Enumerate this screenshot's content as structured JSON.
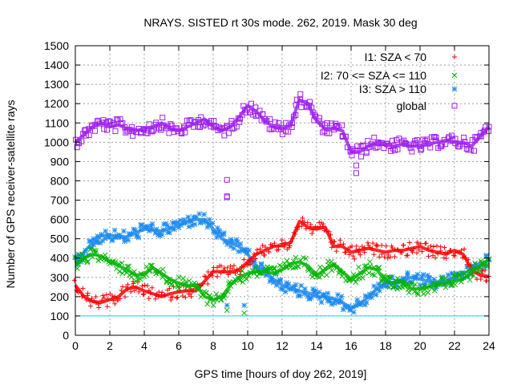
{
  "chart_data": {
    "type": "scatter",
    "title": "NRAYS. SISTED rt 30s mode. 262, 2019. Mask 30 deg",
    "xlabel": "GPS time [hours of doy 262, 2019]",
    "ylabel": "Number of GPS receiver-satellite rays",
    "xlim": [
      0,
      24
    ],
    "ylim": [
      0,
      1500
    ],
    "xticks": [
      "0",
      "2",
      "4",
      "6",
      "8",
      "10",
      "12",
      "14",
      "16",
      "18",
      "20",
      "22",
      "24"
    ],
    "yticks": [
      "0",
      "100",
      "200",
      "300",
      "400",
      "500",
      "600",
      "700",
      "800",
      "900",
      "1000",
      "1100",
      "1200",
      "1300",
      "1400",
      "1500"
    ],
    "grid": true,
    "legend_position": "top-right",
    "reference_line": {
      "y": 100,
      "color": "#22d3e6"
    },
    "series": [
      {
        "name": "I1: SZA < 70",
        "marker": "+",
        "color": "#ff0000",
        "x": [
          0.0,
          0.5,
          1.0,
          1.5,
          2.0,
          2.5,
          3.0,
          3.5,
          4.0,
          4.5,
          5.0,
          5.5,
          6.0,
          6.5,
          7.0,
          7.5,
          8.0,
          8.5,
          9.0,
          9.5,
          10.0,
          10.5,
          11.0,
          11.5,
          12.0,
          12.5,
          13.0,
          13.5,
          14.0,
          14.5,
          15.0,
          15.5,
          16.0,
          16.5,
          17.0,
          17.5,
          18.0,
          18.5,
          19.0,
          19.5,
          20.0,
          20.5,
          21.0,
          21.5,
          22.0,
          22.5,
          23.0,
          23.5,
          24.0
        ],
        "y": [
          260,
          200,
          175,
          170,
          185,
          200,
          240,
          250,
          230,
          215,
          200,
          215,
          225,
          230,
          230,
          280,
          330,
          330,
          325,
          340,
          380,
          420,
          440,
          460,
          465,
          480,
          590,
          560,
          550,
          560,
          460,
          460,
          430,
          440,
          450,
          440,
          430,
          440,
          440,
          450,
          460,
          440,
          430,
          420,
          440,
          420,
          340,
          310,
          305
        ],
        "outliers": [
          {
            "x": 16.2,
            "y": 395
          }
        ]
      },
      {
        "name": "I2: 70 <= SZA <= 110",
        "marker": "x",
        "color": "#00b400",
        "x": [
          0.0,
          0.5,
          1.0,
          1.5,
          2.0,
          2.5,
          3.0,
          3.5,
          4.0,
          4.5,
          5.0,
          5.5,
          6.0,
          6.5,
          7.0,
          7.5,
          8.0,
          8.5,
          9.0,
          9.5,
          10.0,
          10.5,
          11.0,
          11.5,
          12.0,
          12.5,
          13.0,
          13.5,
          14.0,
          14.5,
          15.0,
          15.5,
          16.0,
          16.5,
          17.0,
          17.5,
          18.0,
          18.5,
          19.0,
          19.5,
          20.0,
          20.5,
          21.0,
          21.5,
          22.0,
          22.5,
          23.0,
          23.5,
          24.0
        ],
        "y": [
          370,
          400,
          420,
          410,
          380,
          360,
          340,
          310,
          320,
          350,
          320,
          290,
          270,
          255,
          260,
          200,
          185,
          200,
          260,
          300,
          320,
          330,
          330,
          320,
          340,
          370,
          380,
          360,
          310,
          340,
          370,
          330,
          290,
          320,
          350,
          340,
          280,
          270,
          280,
          240,
          240,
          250,
          260,
          270,
          280,
          290,
          330,
          360,
          395
        ],
        "outliers": [
          {
            "x": 8.8,
            "y": 130
          },
          {
            "x": 9.8,
            "y": 115
          }
        ]
      },
      {
        "name": "I3: SZA > 110",
        "marker": "*",
        "color": "#1e8cf0",
        "x": [
          0.0,
          0.5,
          1.0,
          1.5,
          2.0,
          2.5,
          3.0,
          3.5,
          4.0,
          4.5,
          5.0,
          5.5,
          6.0,
          6.5,
          7.0,
          7.5,
          8.0,
          8.5,
          9.0,
          9.5,
          10.0,
          10.5,
          11.0,
          11.5,
          12.0,
          12.5,
          13.0,
          13.5,
          14.0,
          14.5,
          15.0,
          15.5,
          16.0,
          16.5,
          17.0,
          17.5,
          18.0,
          18.5,
          19.0,
          19.5,
          20.0,
          20.5,
          21.0,
          21.5,
          22.0,
          22.5,
          23.0,
          23.5,
          24.0
        ],
        "y": [
          380,
          430,
          480,
          515,
          520,
          510,
          510,
          530,
          550,
          545,
          540,
          555,
          570,
          590,
          600,
          600,
          550,
          500,
          480,
          460,
          420,
          360,
          330,
          290,
          260,
          240,
          230,
          220,
          200,
          200,
          190,
          170,
          140,
          160,
          200,
          240,
          270,
          270,
          290,
          300,
          290,
          280,
          270,
          280,
          300,
          320,
          340,
          360,
          390
        ],
        "outliers": [
          {
            "x": 8.8,
            "y": 155
          },
          {
            "x": 9.8,
            "y": 155
          }
        ]
      },
      {
        "name": "global",
        "marker": "square",
        "color": "#a020f0",
        "x": [
          0.0,
          0.5,
          1.0,
          1.5,
          2.0,
          2.5,
          3.0,
          3.5,
          4.0,
          4.5,
          5.0,
          5.5,
          6.0,
          6.5,
          7.0,
          7.5,
          8.0,
          8.5,
          9.0,
          9.5,
          10.0,
          10.5,
          11.0,
          11.5,
          12.0,
          12.5,
          13.0,
          13.5,
          14.0,
          14.5,
          15.0,
          15.5,
          16.0,
          16.5,
          17.0,
          17.5,
          18.0,
          18.5,
          19.0,
          19.5,
          20.0,
          20.5,
          21.0,
          21.5,
          22.0,
          22.5,
          23.0,
          23.5,
          24.0
        ],
        "y": [
          1000,
          1040,
          1080,
          1100,
          1080,
          1090,
          1070,
          1060,
          1070,
          1080,
          1100,
          1070,
          1060,
          1080,
          1100,
          1120,
          1080,
          1060,
          1080,
          1130,
          1190,
          1160,
          1110,
          1080,
          1070,
          1090,
          1220,
          1200,
          1110,
          1070,
          1070,
          1060,
          950,
          950,
          980,
          1000,
          990,
          980,
          990,
          980,
          980,
          990,
          1000,
          1010,
          1000,
          1000,
          980,
          1030,
          1080
        ],
        "outliers": [
          {
            "x": 8.8,
            "y": 805
          },
          {
            "x": 8.8,
            "y": 720
          },
          {
            "x": 8.8,
            "y": 715
          },
          {
            "x": 16.3,
            "y": 840
          },
          {
            "x": 16.3,
            "y": 880
          }
        ]
      }
    ]
  }
}
